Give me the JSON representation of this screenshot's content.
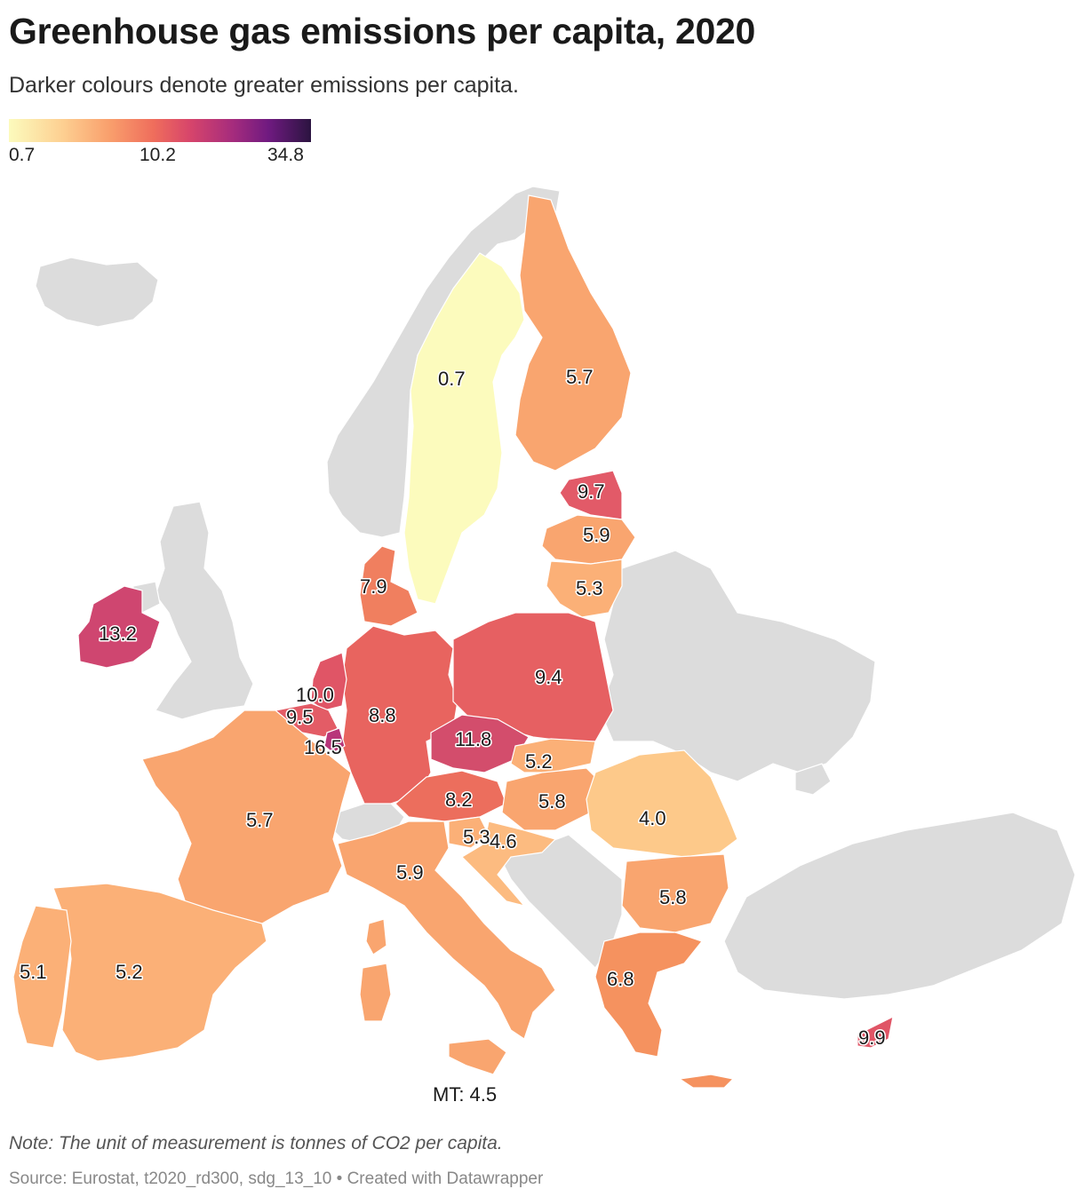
{
  "header": {
    "title": "Greenhouse gas emissions per capita, 2020",
    "subtitle": "Darker colours denote greater emissions per capita."
  },
  "legend": {
    "min_label": "0.7",
    "mid_label": "10.2",
    "max_label": "34.8",
    "colors": [
      "#fcfbbd",
      "#fdcf91",
      "#f9a06d",
      "#ef6d5c",
      "#d7456b",
      "#a62c7d",
      "#6f1a80",
      "#2b1440"
    ]
  },
  "map": {
    "no_data_color": "#dcdcdc",
    "regions": [
      {
        "code": "SE",
        "label": "0.7",
        "value": 0.7,
        "color": "#fcfbbd"
      },
      {
        "code": "FI",
        "label": "5.7",
        "value": 5.7,
        "color": "#f9a56f"
      },
      {
        "code": "EE",
        "label": "9.7",
        "value": 9.7,
        "color": "#e25a68"
      },
      {
        "code": "LV",
        "label": "5.9",
        "value": 5.9,
        "color": "#f9a56f"
      },
      {
        "code": "LT",
        "label": "5.3",
        "value": 5.3,
        "color": "#fbb077"
      },
      {
        "code": "DK",
        "label": "7.9",
        "value": 7.9,
        "color": "#f07f5f"
      },
      {
        "code": "IE",
        "label": "13.2",
        "value": 13.2,
        "color": "#cf4670"
      },
      {
        "code": "NL",
        "label": "10.0",
        "value": 10.0,
        "color": "#e05566"
      },
      {
        "code": "BE",
        "label": "9.5",
        "value": 9.5,
        "color": "#e35c66"
      },
      {
        "code": "LU",
        "label": "16.5",
        "value": 16.5,
        "color": "#b8367a"
      },
      {
        "code": "DE",
        "label": "8.8",
        "value": 8.8,
        "color": "#e8645f"
      },
      {
        "code": "PL",
        "label": "9.4",
        "value": 9.4,
        "color": "#e66062"
      },
      {
        "code": "CZ",
        "label": "11.8",
        "value": 11.8,
        "color": "#d34d6c"
      },
      {
        "code": "SK",
        "label": "5.2",
        "value": 5.2,
        "color": "#fbb077"
      },
      {
        "code": "AT",
        "label": "8.2",
        "value": 8.2,
        "color": "#ec6e5d"
      },
      {
        "code": "HU",
        "label": "5.8",
        "value": 5.8,
        "color": "#f9a56f"
      },
      {
        "code": "RO",
        "label": "4.0",
        "value": 4.0,
        "color": "#fdc98a"
      },
      {
        "code": "SI",
        "label": "5.3",
        "value": 5.3,
        "color": "#fbb077"
      },
      {
        "code": "HR",
        "label": "4.6",
        "value": 4.6,
        "color": "#fcbb80"
      },
      {
        "code": "FR",
        "label": "5.7",
        "value": 5.7,
        "color": "#f9a56f"
      },
      {
        "code": "IT",
        "label": "5.9",
        "value": 5.9,
        "color": "#f9a56f"
      },
      {
        "code": "BG",
        "label": "5.8",
        "value": 5.8,
        "color": "#f9a56f"
      },
      {
        "code": "ES",
        "label": "5.2",
        "value": 5.2,
        "color": "#fbb077"
      },
      {
        "code": "PT",
        "label": "5.1",
        "value": 5.1,
        "color": "#fbb077"
      },
      {
        "code": "GR",
        "label": "6.8",
        "value": 6.8,
        "color": "#f5925f"
      },
      {
        "code": "CY",
        "label": "9.9",
        "value": 9.9,
        "color": "#e05566"
      }
    ],
    "malta_label": "MT: 4.5"
  },
  "footer": {
    "note": "Note: The unit of measurement is tonnes of CO2 per capita.",
    "source": "Source: Eurostat, t2020_rd300, sdg_13_10 • Created with Datawrapper"
  }
}
